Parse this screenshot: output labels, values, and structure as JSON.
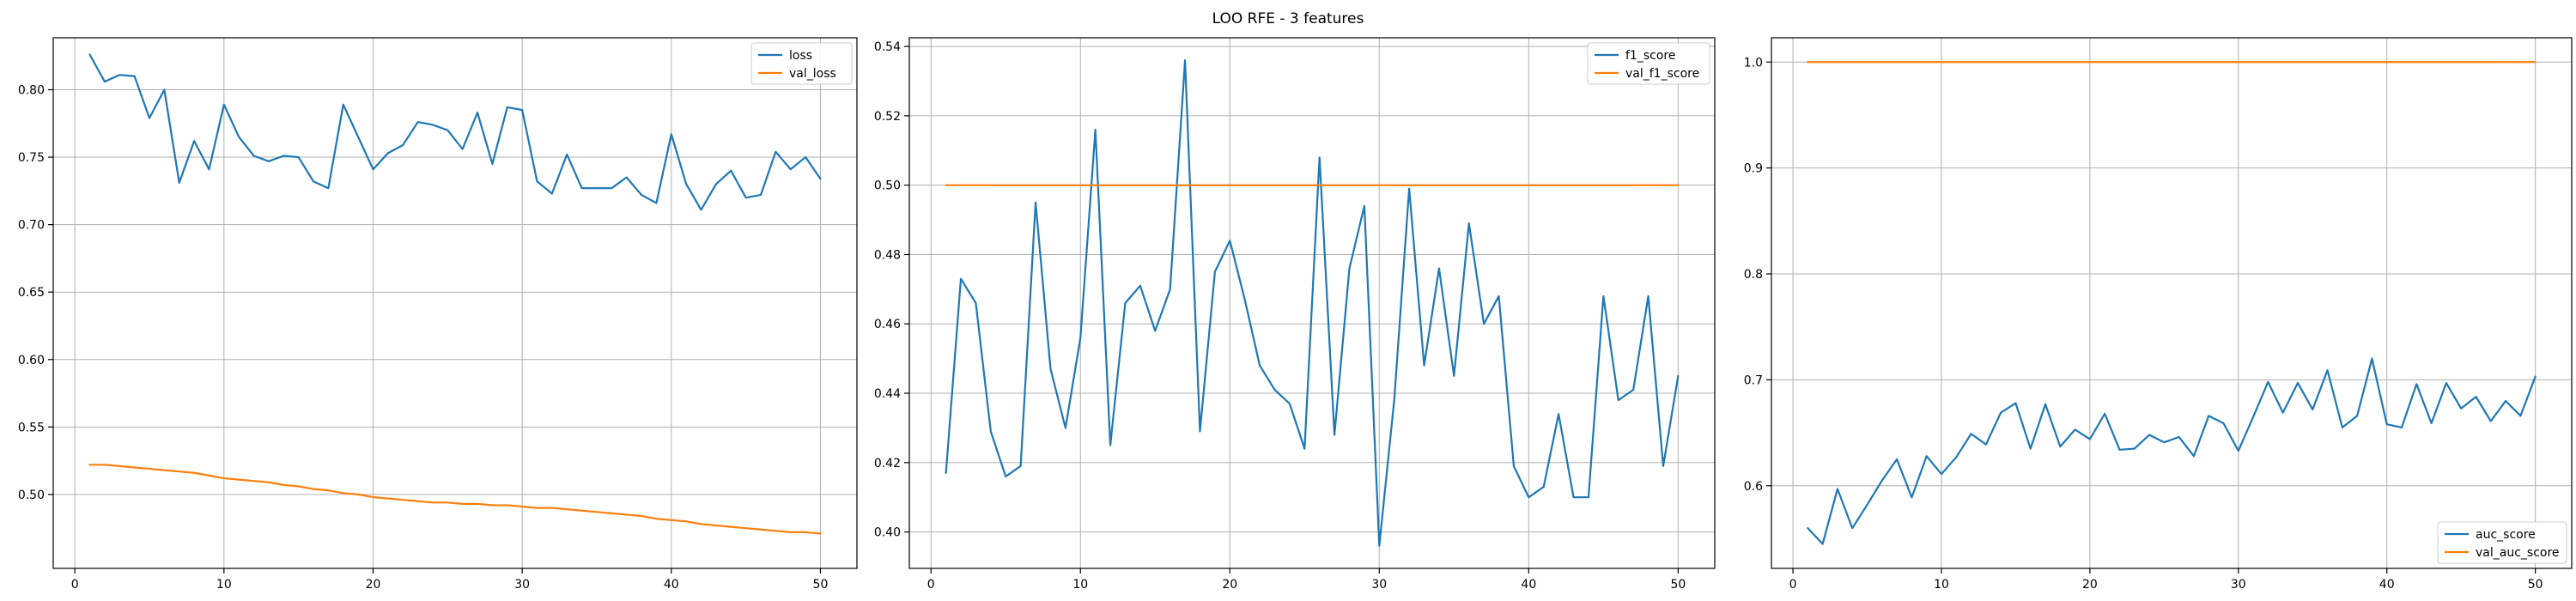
{
  "figure": {
    "suptitle": "LOO RFE - 3 features"
  },
  "colors": {
    "series_1": "#1f77b4",
    "series_2": "#ff7f0e"
  },
  "chart_data": [
    {
      "type": "line",
      "title": "",
      "xlabel": "",
      "ylabel": "",
      "xlim": [
        -1.45,
        52.45
      ],
      "ylim": [
        0.4452,
        0.8385
      ],
      "xticks": [
        0,
        10,
        20,
        30,
        40,
        50
      ],
      "yticks": [
        0.5,
        0.55,
        0.6,
        0.65,
        0.7,
        0.75,
        0.8
      ],
      "ytick_labels": [
        "0.50",
        "0.55",
        "0.60",
        "0.65",
        "0.70",
        "0.75",
        "0.80"
      ],
      "grid": true,
      "legend_position": "top-right",
      "x": [
        1,
        2,
        3,
        4,
        5,
        6,
        7,
        8,
        9,
        10,
        11,
        12,
        13,
        14,
        15,
        16,
        17,
        18,
        19,
        20,
        21,
        22,
        23,
        24,
        25,
        26,
        27,
        28,
        29,
        30,
        31,
        32,
        33,
        34,
        35,
        36,
        37,
        38,
        39,
        40,
        41,
        42,
        43,
        44,
        45,
        46,
        47,
        48,
        49,
        50
      ],
      "series": [
        {
          "name": "loss",
          "color": "#1f77b4",
          "values": [
            0.826,
            0.806,
            0.811,
            0.81,
            0.779,
            0.8,
            0.731,
            0.762,
            0.741,
            0.789,
            0.765,
            0.751,
            0.747,
            0.751,
            0.75,
            0.732,
            0.727,
            0.789,
            0.765,
            0.741,
            0.753,
            0.759,
            0.776,
            0.774,
            0.77,
            0.756,
            0.783,
            0.745,
            0.787,
            0.785,
            0.732,
            0.723,
            0.752,
            0.727,
            0.727,
            0.727,
            0.735,
            0.722,
            0.716,
            0.767,
            0.73,
            0.711,
            0.73,
            0.74,
            0.72,
            0.722,
            0.754,
            0.741,
            0.75,
            0.734
          ]
        },
        {
          "name": "val_loss",
          "color": "#ff7f0e",
          "values": [
            0.522,
            0.522,
            0.521,
            0.52,
            0.519,
            0.518,
            0.517,
            0.516,
            0.514,
            0.512,
            0.511,
            0.51,
            0.509,
            0.507,
            0.506,
            0.504,
            0.503,
            0.501,
            0.5,
            0.498,
            0.497,
            0.496,
            0.495,
            0.494,
            0.494,
            0.493,
            0.493,
            0.492,
            0.492,
            0.491,
            0.49,
            0.49,
            0.489,
            0.488,
            0.487,
            0.486,
            0.485,
            0.484,
            0.482,
            0.481,
            0.48,
            0.478,
            0.477,
            0.476,
            0.475,
            0.474,
            0.473,
            0.472,
            0.472,
            0.471
          ]
        }
      ]
    },
    {
      "type": "line",
      "title": "",
      "xlabel": "",
      "ylabel": "",
      "xlim": [
        -1.45,
        52.45
      ],
      "ylim": [
        0.3895,
        0.5425
      ],
      "xticks": [
        0,
        10,
        20,
        30,
        40,
        50
      ],
      "yticks": [
        0.4,
        0.42,
        0.44,
        0.46,
        0.48,
        0.5,
        0.52,
        0.54
      ],
      "ytick_labels": [
        "0.40",
        "0.42",
        "0.44",
        "0.46",
        "0.48",
        "0.50",
        "0.52",
        "0.54"
      ],
      "grid": true,
      "legend_position": "top-right",
      "x": [
        1,
        2,
        3,
        4,
        5,
        6,
        7,
        8,
        9,
        10,
        11,
        12,
        13,
        14,
        15,
        16,
        17,
        18,
        19,
        20,
        21,
        22,
        23,
        24,
        25,
        26,
        27,
        28,
        29,
        30,
        31,
        32,
        33,
        34,
        35,
        36,
        37,
        38,
        39,
        40,
        41,
        42,
        43,
        44,
        45,
        46,
        47,
        48,
        49,
        50
      ],
      "series": [
        {
          "name": "f1_score",
          "color": "#1f77b4",
          "values": [
            0.417,
            0.473,
            0.466,
            0.429,
            0.416,
            0.419,
            0.495,
            0.447,
            0.43,
            0.456,
            0.516,
            0.425,
            0.466,
            0.471,
            0.458,
            0.47,
            0.536,
            0.429,
            0.475,
            0.484,
            0.467,
            0.448,
            0.441,
            0.437,
            0.424,
            0.508,
            0.428,
            0.476,
            0.494,
            0.396,
            0.438,
            0.499,
            0.448,
            0.476,
            0.445,
            0.489,
            0.46,
            0.468,
            0.419,
            0.41,
            0.413,
            0.434,
            0.41,
            0.41,
            0.468,
            0.438,
            0.441,
            0.468,
            0.419,
            0.445
          ]
        },
        {
          "name": "val_f1_score",
          "color": "#ff7f0e",
          "values": [
            0.5,
            0.5,
            0.5,
            0.5,
            0.5,
            0.5,
            0.5,
            0.5,
            0.5,
            0.5,
            0.5,
            0.5,
            0.5,
            0.5,
            0.5,
            0.5,
            0.5,
            0.5,
            0.5,
            0.5,
            0.5,
            0.5,
            0.5,
            0.5,
            0.5,
            0.5,
            0.5,
            0.5,
            0.5,
            0.5,
            0.5,
            0.5,
            0.5,
            0.5,
            0.5,
            0.5,
            0.5,
            0.5,
            0.5,
            0.5,
            0.5,
            0.5,
            0.5,
            0.5,
            0.5,
            0.5,
            0.5,
            0.5,
            0.5,
            0.5
          ]
        }
      ]
    },
    {
      "type": "line",
      "title": "",
      "xlabel": "",
      "ylabel": "",
      "xlim": [
        -1.45,
        52.45
      ],
      "ylim": [
        0.522,
        1.0229
      ],
      "xticks": [
        0,
        10,
        20,
        30,
        40,
        50
      ],
      "yticks": [
        0.6,
        0.7,
        0.8,
        0.9,
        1.0
      ],
      "ytick_labels": [
        "0.6",
        "0.7",
        "0.8",
        "0.9",
        "1.0"
      ],
      "grid": true,
      "legend_position": "bottom-right",
      "x": [
        1,
        2,
        3,
        4,
        5,
        6,
        7,
        8,
        9,
        10,
        11,
        12,
        13,
        14,
        15,
        16,
        17,
        18,
        19,
        20,
        21,
        22,
        23,
        24,
        25,
        26,
        27,
        28,
        29,
        30,
        31,
        32,
        33,
        34,
        35,
        36,
        37,
        38,
        39,
        40,
        41,
        42,
        43,
        44,
        45,
        46,
        47,
        48,
        49,
        50
      ],
      "series": [
        {
          "name": "auc_score",
          "color": "#1f77b4",
          "values": [
            0.56,
            0.545,
            0.597,
            0.56,
            0.582,
            0.605,
            0.625,
            0.589,
            0.628,
            0.611,
            0.627,
            0.649,
            0.639,
            0.669,
            0.678,
            0.635,
            0.677,
            0.637,
            0.653,
            0.644,
            0.668,
            0.634,
            0.635,
            0.648,
            0.641,
            0.646,
            0.628,
            0.666,
            0.659,
            0.633,
            0.665,
            0.698,
            0.669,
            0.697,
            0.672,
            0.709,
            0.655,
            0.666,
            0.72,
            0.658,
            0.655,
            0.696,
            0.659,
            0.697,
            0.673,
            0.684,
            0.661,
            0.68,
            0.666,
            0.703
          ]
        },
        {
          "name": "val_auc_score",
          "color": "#ff7f0e",
          "values": [
            1.0,
            1.0,
            1.0,
            1.0,
            1.0,
            1.0,
            1.0,
            1.0,
            1.0,
            1.0,
            1.0,
            1.0,
            1.0,
            1.0,
            1.0,
            1.0,
            1.0,
            1.0,
            1.0,
            1.0,
            1.0,
            1.0,
            1.0,
            1.0,
            1.0,
            1.0,
            1.0,
            1.0,
            1.0,
            1.0,
            1.0,
            1.0,
            1.0,
            1.0,
            1.0,
            1.0,
            1.0,
            1.0,
            1.0,
            1.0,
            1.0,
            1.0,
            1.0,
            1.0,
            1.0,
            1.0,
            1.0,
            1.0,
            1.0,
            1.0
          ]
        }
      ]
    }
  ]
}
